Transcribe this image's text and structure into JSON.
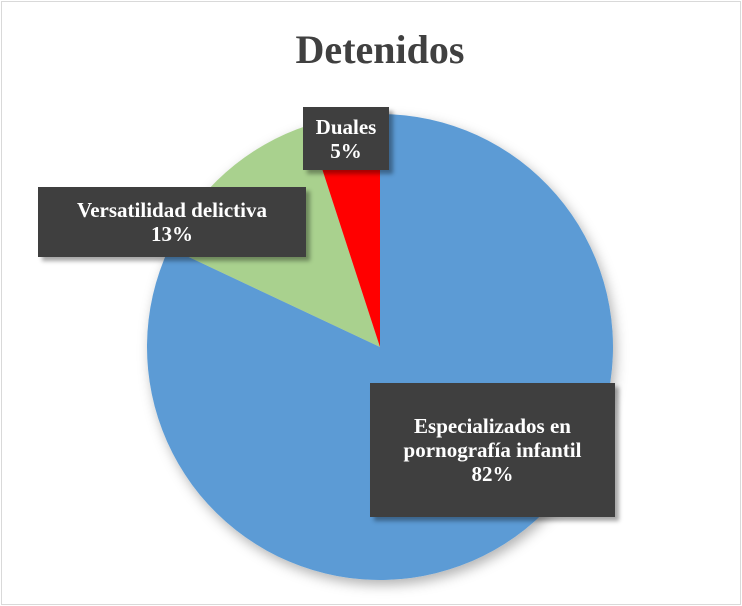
{
  "chart_data": {
    "type": "pie",
    "title": "Detenidos",
    "categories": [
      "Especializados en pornografía infantil",
      "Versatilidad delictiva",
      "Duales"
    ],
    "values": [
      82,
      13,
      5
    ],
    "value_labels": [
      "82%",
      "13%",
      "5%"
    ],
    "colors": [
      "#5b9bd5",
      "#a9d18e",
      "#ff0000"
    ]
  }
}
